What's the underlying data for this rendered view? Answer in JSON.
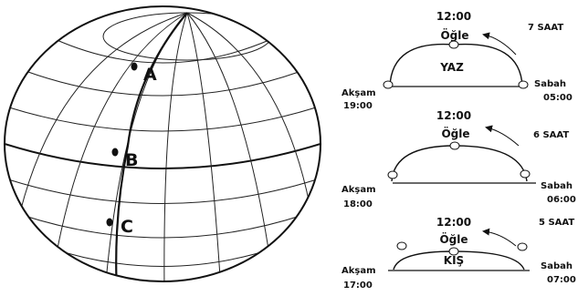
{
  "globe": {
    "points": [
      {
        "label": "A"
      },
      {
        "label": "B"
      },
      {
        "label": "C"
      }
    ]
  },
  "panels": [
    {
      "season": "YAZ",
      "noon_time": "12:00",
      "noon_label": "Öğle",
      "duration": "7 SAAT",
      "morning_label": "Sabah",
      "morning_time": "05:00",
      "evening_label": "Akşam",
      "evening_time": "19:00"
    },
    {
      "season": "",
      "noon_time": "12:00",
      "noon_label": "Öğle",
      "duration": "6 SAAT",
      "morning_label": "Sabah",
      "morning_time": "06:00",
      "evening_label": "Akşam",
      "evening_time": "18:00"
    },
    {
      "season": "KIŞ",
      "noon_time": "12:00",
      "noon_label": "Öğle",
      "duration": "5 SAAT",
      "morning_label": "Sabah",
      "morning_time": "07:00",
      "evening_label": "Akşam",
      "evening_time": "17:00"
    }
  ],
  "colors": {
    "ink": "#111111",
    "background": "#ffffff"
  }
}
